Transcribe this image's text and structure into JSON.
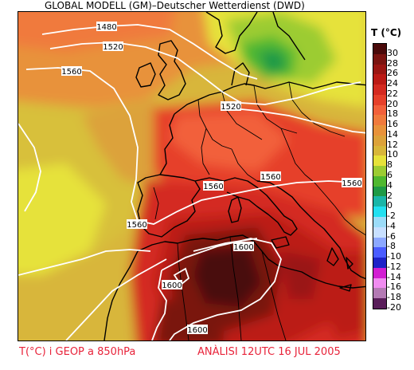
{
  "header": {
    "title": "GLOBAL MODELL (GM)–Deutscher Wetterdienst (DWD)"
  },
  "legend": {
    "title": "T (°C)",
    "entries": [
      {
        "label": "30",
        "color": "#4a0a0a"
      },
      {
        "label": "28",
        "color": "#7a1410"
      },
      {
        "label": "26",
        "color": "#9a1612"
      },
      {
        "label": "24",
        "color": "#bb1a15"
      },
      {
        "label": "22",
        "color": "#d42a20"
      },
      {
        "label": "20",
        "color": "#e6402a"
      },
      {
        "label": "18",
        "color": "#f2603a"
      },
      {
        "label": "16",
        "color": "#f07a3c"
      },
      {
        "label": "14",
        "color": "#e8923a"
      },
      {
        "label": "12",
        "color": "#dca23a"
      },
      {
        "label": "10",
        "color": "#d8b63a"
      },
      {
        "label": "8",
        "color": "#e6e23a"
      },
      {
        "label": "6",
        "color": "#9ccc33"
      },
      {
        "label": "4",
        "color": "#4fb830"
      },
      {
        "label": "2",
        "color": "#1e9a46"
      },
      {
        "label": "0",
        "color": "#1ab6a8"
      },
      {
        "label": "-2",
        "color": "#22e0f0"
      },
      {
        "label": "-4",
        "color": "#9cdcf8"
      },
      {
        "label": "-6",
        "color": "#c8e0ff"
      },
      {
        "label": "-8",
        "color": "#8ca8ff"
      },
      {
        "label": "-10",
        "color": "#4a5cff"
      },
      {
        "label": "-12",
        "color": "#1e22c8"
      },
      {
        "label": "-14",
        "color": "#d21ed2"
      },
      {
        "label": "-16",
        "color": "#f08cf0"
      },
      {
        "label": "-18",
        "color": "#b47ab4"
      },
      {
        "label": "-20",
        "color": "#5a1e5a"
      }
    ]
  },
  "contours": {
    "labels": [
      "1480",
      "1520",
      "1560",
      "1520",
      "1560",
      "1560",
      "1560",
      "1560",
      "1600",
      "1600",
      "1600"
    ]
  },
  "footer": {
    "left": "T(°C) i GEOP a 850hPa",
    "right": "ANÀLISI 12UTC 16 JUL 2005"
  }
}
